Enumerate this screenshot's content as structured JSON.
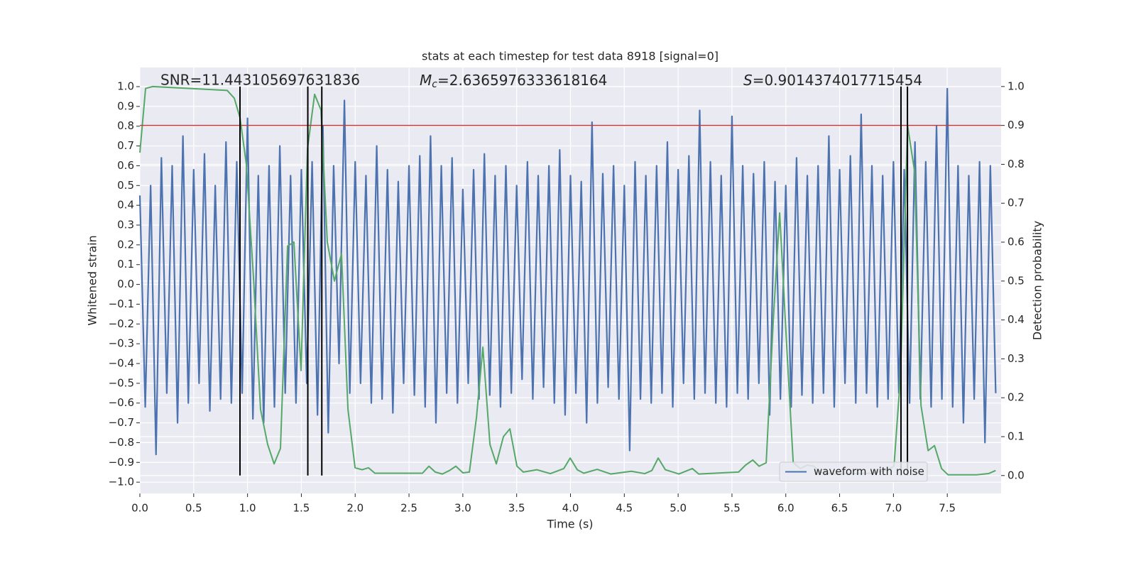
{
  "chart_data": {
    "type": "line",
    "title": "stats at each timestep for test data 8918 [signal=0]",
    "xlabel": "Time (s)",
    "ylabel": "Whitened strain",
    "y2label": "Detection probability",
    "annotations": [
      {
        "text": "SNR=11.443105697631836"
      },
      {
        "symbol": "M",
        "subscript": "c",
        "text": "=2.6365976333618164"
      },
      {
        "symbol": "S",
        "text": "=0.9014374017715454"
      }
    ],
    "xlim": [
      0,
      8
    ],
    "ylim": [
      -1.057,
      1.097
    ],
    "y2lim": [
      -0.046,
      1.049
    ],
    "xticks": [
      {
        "value": 0,
        "label": "0.0"
      },
      {
        "value": 0.5,
        "label": "0.5"
      },
      {
        "value": 1,
        "label": "1.0"
      },
      {
        "value": 1.5,
        "label": "1.5"
      },
      {
        "value": 2,
        "label": "2.0"
      },
      {
        "value": 2.5,
        "label": "2.5"
      },
      {
        "value": 3,
        "label": "3.0"
      },
      {
        "value": 3.5,
        "label": "3.5"
      },
      {
        "value": 4,
        "label": "4.0"
      },
      {
        "value": 4.5,
        "label": "4.5"
      },
      {
        "value": 5,
        "label": "5.0"
      },
      {
        "value": 5.5,
        "label": "5.5"
      },
      {
        "value": 6,
        "label": "6.0"
      },
      {
        "value": 6.5,
        "label": "6.5"
      },
      {
        "value": 7,
        "label": "7.0"
      },
      {
        "value": 7.5,
        "label": "7.5"
      }
    ],
    "yticks": [
      {
        "value": -1,
        "label": "−1.0"
      },
      {
        "value": -0.9,
        "label": "−0.9"
      },
      {
        "value": -0.8,
        "label": "−0.8"
      },
      {
        "value": -0.7,
        "label": "−0.7"
      },
      {
        "value": -0.6,
        "label": "−0.6"
      },
      {
        "value": -0.5,
        "label": "−0.5"
      },
      {
        "value": -0.4,
        "label": "−0.4"
      },
      {
        "value": -0.3,
        "label": "−0.3"
      },
      {
        "value": -0.2,
        "label": "−0.2"
      },
      {
        "value": -0.1,
        "label": "−0.1"
      },
      {
        "value": 0,
        "label": "0.0"
      },
      {
        "value": 0.1,
        "label": "0.1"
      },
      {
        "value": 0.2,
        "label": "0.2"
      },
      {
        "value": 0.3,
        "label": "0.3"
      },
      {
        "value": 0.4,
        "label": "0.4"
      },
      {
        "value": 0.5,
        "label": "0.5"
      },
      {
        "value": 0.6,
        "label": "0.6"
      },
      {
        "value": 0.7,
        "label": "0.7"
      },
      {
        "value": 0.8,
        "label": "0.8"
      },
      {
        "value": 0.9,
        "label": "0.9"
      },
      {
        "value": 1,
        "label": "1.0"
      }
    ],
    "y2ticks": [
      {
        "value": 0,
        "label": "0.0"
      },
      {
        "value": 0.1,
        "label": "0.1"
      },
      {
        "value": 0.2,
        "label": "0.2"
      },
      {
        "value": 0.3,
        "label": "0.3"
      },
      {
        "value": 0.4,
        "label": "0.4"
      },
      {
        "value": 0.5,
        "label": "0.5"
      },
      {
        "value": 0.6,
        "label": "0.6"
      },
      {
        "value": 0.7,
        "label": "0.7"
      },
      {
        "value": 0.8,
        "label": "0.8"
      },
      {
        "value": 0.9,
        "label": "0.9"
      },
      {
        "value": 1,
        "label": "1.0"
      }
    ],
    "grid": true,
    "legend": "lower right",
    "threshold": {
      "value": 0.9,
      "axis": "y2",
      "color": "#c03d3e"
    },
    "vlines": {
      "x": [
        0.93,
        1.56,
        1.69,
        7.07,
        7.13
      ],
      "ymin": 0,
      "ymax": 1,
      "axis": "y2",
      "color": "#000000"
    },
    "series": [
      {
        "name": "waveform with noise",
        "color": "#4c72b0",
        "x": [
          0,
          0.05,
          0.1,
          0.15,
          0.2,
          0.25,
          0.3,
          0.35,
          0.4,
          0.45,
          0.5,
          0.55,
          0.6,
          0.65,
          0.7,
          0.75,
          0.8,
          0.85,
          0.9,
          0.95,
          1,
          1.05,
          1.1,
          1.15,
          1.2,
          1.25,
          1.3,
          1.35,
          1.4,
          1.45,
          1.5,
          1.55,
          1.6,
          1.65,
          1.7,
          1.75,
          1.8,
          1.85,
          1.9,
          1.95,
          2,
          2.05,
          2.1,
          2.15,
          2.2,
          2.25,
          2.3,
          2.35,
          2.4,
          2.45,
          2.5,
          2.55,
          2.6,
          2.65,
          2.7,
          2.75,
          2.8,
          2.85,
          2.9,
          2.95,
          3,
          3.05,
          3.1,
          3.15,
          3.2,
          3.25,
          3.3,
          3.35,
          3.4,
          3.45,
          3.5,
          3.55,
          3.6,
          3.65,
          3.7,
          3.75,
          3.8,
          3.85,
          3.9,
          3.95,
          4,
          4.05,
          4.1,
          4.15,
          4.2,
          4.25,
          4.3,
          4.35,
          4.4,
          4.45,
          4.5,
          4.55,
          4.6,
          4.65,
          4.7,
          4.75,
          4.8,
          4.85,
          4.9,
          4.95,
          5,
          5.05,
          5.1,
          5.15,
          5.2,
          5.25,
          5.3,
          5.35,
          5.4,
          5.45,
          5.5,
          5.55,
          5.6,
          5.65,
          5.7,
          5.75,
          5.8,
          5.85,
          5.9,
          5.95,
          6,
          6.05,
          6.1,
          6.15,
          6.2,
          6.25,
          6.3,
          6.35,
          6.4,
          6.45,
          6.5,
          6.55,
          6.6,
          6.65,
          6.7,
          6.75,
          6.8,
          6.85,
          6.9,
          6.95,
          7,
          7.05,
          7.1,
          7.15,
          7.2,
          7.25,
          7.3,
          7.35,
          7.4,
          7.45,
          7.5,
          7.55,
          7.6,
          7.65,
          7.7,
          7.75,
          7.8,
          7.85,
          7.9,
          7.95
        ],
        "values": [
          0.45,
          -0.62,
          0.5,
          -0.86,
          0.64,
          -0.55,
          0.6,
          -0.7,
          0.75,
          -0.6,
          0.58,
          -0.5,
          0.66,
          -0.64,
          0.5,
          -0.58,
          0.72,
          -0.6,
          0.62,
          -0.55,
          0.84,
          -0.68,
          0.55,
          -0.7,
          0.6,
          -0.62,
          0.7,
          -0.55,
          0.55,
          -0.6,
          0.58,
          -0.5,
          0.62,
          -0.66,
          0.8,
          -0.75,
          0.6,
          -0.4,
          0.93,
          -0.55,
          0.62,
          -0.5,
          0.55,
          -0.6,
          0.7,
          -0.58,
          0.58,
          -0.65,
          0.52,
          -0.5,
          0.6,
          -0.56,
          0.65,
          -0.62,
          0.75,
          -0.7,
          0.6,
          -0.55,
          0.64,
          -0.6,
          0.48,
          -0.5,
          0.58,
          -0.58,
          0.66,
          -0.56,
          0.55,
          -0.62,
          0.6,
          -0.55,
          0.5,
          -0.48,
          0.62,
          -0.58,
          0.55,
          -0.52,
          0.6,
          -0.6,
          0.68,
          -0.66,
          0.55,
          -0.55,
          0.52,
          -0.7,
          0.82,
          -0.6,
          0.56,
          -0.52,
          0.6,
          -0.58,
          0.5,
          -0.84,
          0.62,
          -0.58,
          0.55,
          -0.6,
          0.6,
          -0.55,
          0.72,
          -0.62,
          0.58,
          -0.5,
          0.65,
          -0.58,
          0.88,
          -0.55,
          0.62,
          -0.6,
          0.55,
          -0.62,
          0.85,
          -0.55,
          0.6,
          -0.58,
          0.56,
          -0.5,
          0.62,
          -0.66,
          0.52,
          -0.58,
          0.5,
          -0.62,
          0.64,
          -0.56,
          0.55,
          -0.6,
          0.6,
          -0.55,
          0.75,
          -0.62,
          0.58,
          -0.5,
          0.65,
          -0.6,
          0.86,
          -0.55,
          0.6,
          -0.62,
          0.55,
          -0.58,
          0.62,
          -0.55,
          0.58,
          -0.6,
          0.72,
          -0.58,
          0.62,
          -0.62,
          0.8,
          -0.58,
          0.99,
          -0.62,
          0.6,
          -0.7,
          0.55,
          -0.58,
          0.62,
          -0.8,
          0.6,
          -0.55
        ]
      },
      {
        "color": "#55a868",
        "axis": "y2",
        "x": [
          0,
          0.053,
          0.119,
          0.811,
          0.877,
          0.93,
          0.989,
          1.055,
          1.121,
          1.187,
          1.247,
          1.306,
          1.372,
          1.431,
          1.497,
          1.557,
          1.623,
          1.682,
          1.741,
          1.807,
          1.873,
          1.933,
          1.999,
          2.065,
          2.124,
          2.183,
          2.625,
          2.685,
          2.744,
          2.81,
          2.876,
          2.935,
          3.001,
          3.061,
          3.127,
          3.186,
          3.252,
          3.311,
          3.377,
          3.437,
          3.503,
          3.562,
          3.687,
          3.813,
          3.938,
          3.997,
          4.063,
          4.123,
          4.248,
          4.373,
          4.565,
          4.69,
          4.756,
          4.815,
          4.881,
          5.007,
          5.132,
          5.191,
          5.561,
          5.627,
          5.693,
          5.752,
          5.818,
          5.884,
          5.943,
          6.009,
          6.069,
          6.135,
          6.201,
          6.26,
          6.319,
          6.451,
          6.814,
          6.946,
          7.005,
          7.065,
          7.131,
          7.197,
          7.256,
          7.322,
          7.381,
          7.447,
          7.507,
          7.771,
          7.883,
          7.949
        ],
        "values": [
          0.83,
          0.995,
          1.0,
          0.99,
          0.97,
          0.92,
          0.8,
          0.51,
          0.17,
          0.08,
          0.03,
          0.07,
          0.59,
          0.6,
          0.27,
          0.84,
          0.98,
          0.94,
          0.6,
          0.5,
          0.57,
          0.17,
          0.02,
          0.015,
          0.02,
          0.006,
          0.006,
          0.024,
          0.009,
          0.004,
          0.013,
          0.024,
          0.007,
          0.009,
          0.15,
          0.33,
          0.08,
          0.03,
          0.1,
          0.12,
          0.024,
          0.009,
          0.015,
          0.005,
          0.018,
          0.045,
          0.015,
          0.006,
          0.016,
          0.004,
          0.011,
          0.005,
          0.013,
          0.045,
          0.015,
          0.004,
          0.018,
          0.004,
          0.009,
          0.027,
          0.04,
          0.024,
          0.033,
          0.4,
          0.675,
          0.33,
          0.033,
          0.018,
          0.027,
          0.024,
          0.009,
          0.004,
          0.006,
          0.015,
          0.024,
          0.255,
          0.9,
          0.78,
          0.18,
          0.064,
          0.077,
          0.018,
          0.002,
          0.002,
          0.005,
          0.013
        ]
      }
    ]
  }
}
